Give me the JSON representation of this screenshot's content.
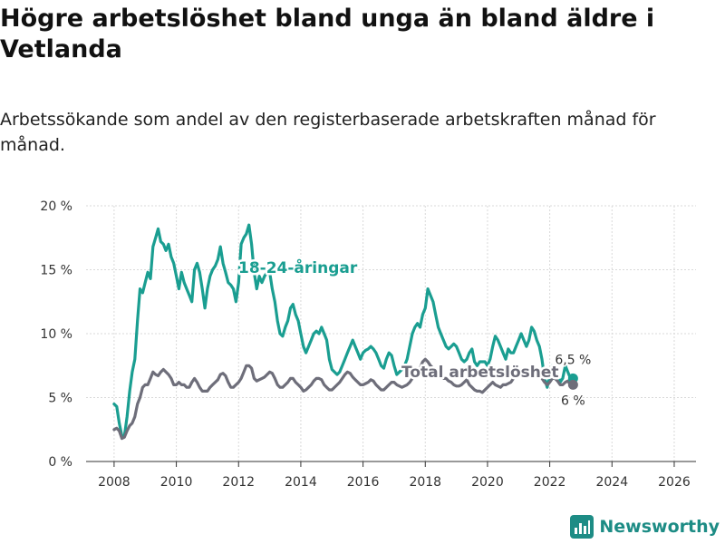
{
  "header": {
    "title": "Högre arbetslöshet bland unga än bland äldre i Vetlanda",
    "subtitle": "Arbetssökande som andel av den registerbaserade arbetskraften månad för månad."
  },
  "brand": {
    "name": "Newsworthy",
    "icon": "bar-chart-logo-icon",
    "color": "#1d8c85"
  },
  "chart_data": {
    "type": "line",
    "x_start": 2008.0,
    "x_step_months": 1,
    "xlim": [
      2007.1,
      2026.7
    ],
    "ylim": [
      0,
      20
    ],
    "xticks": [
      2008,
      2010,
      2012,
      2014,
      2016,
      2018,
      2020,
      2022,
      2024,
      2026
    ],
    "yticks": [
      0,
      5,
      10,
      15,
      20
    ],
    "ytick_labels": [
      "0 %",
      "5 %",
      "10 %",
      "15 %",
      "20 %"
    ],
    "grid": true,
    "series": [
      {
        "name": "18-24-åringar",
        "label": "18-24-åringar",
        "color": "#1a9e91",
        "end_label": "6,5 %",
        "values": [
          4.5,
          4.3,
          3.0,
          2.0,
          2.0,
          3.5,
          5.5,
          7.0,
          8.0,
          11.0,
          13.5,
          13.2,
          14.0,
          14.8,
          14.3,
          16.8,
          17.5,
          18.2,
          17.2,
          17.0,
          16.5,
          17.0,
          16.0,
          15.5,
          14.5,
          13.5,
          14.8,
          14.0,
          13.5,
          13.0,
          12.5,
          15.0,
          15.5,
          14.8,
          13.5,
          12.0,
          13.5,
          14.5,
          15.0,
          15.3,
          15.8,
          16.8,
          15.5,
          14.8,
          14.0,
          13.8,
          13.5,
          12.5,
          14.0,
          17.0,
          17.5,
          17.8,
          18.5,
          17.0,
          14.8,
          13.5,
          14.5,
          14.0,
          14.5,
          14.8,
          14.8,
          13.5,
          12.5,
          11.0,
          10.0,
          9.8,
          10.5,
          11.0,
          12.0,
          12.3,
          11.5,
          11.0,
          10.0,
          9.0,
          8.5,
          9.0,
          9.5,
          10.0,
          10.2,
          10.0,
          10.5,
          10.0,
          9.5,
          8.0,
          7.2,
          7.0,
          6.8,
          7.0,
          7.5,
          8.0,
          8.5,
          9.0,
          9.5,
          9.0,
          8.5,
          8.0,
          8.5,
          8.7,
          8.8,
          9.0,
          8.8,
          8.5,
          8.0,
          7.5,
          7.3,
          8.0,
          8.5,
          8.3,
          7.5,
          6.8,
          7.0,
          7.2,
          7.5,
          8.0,
          9.0,
          10.0,
          10.5,
          10.8,
          10.5,
          11.5,
          12.0,
          13.5,
          13.0,
          12.5,
          11.5,
          10.5,
          10.0,
          9.5,
          9.0,
          8.8,
          9.0,
          9.2,
          9.0,
          8.5,
          8.0,
          7.8,
          8.0,
          8.5,
          8.8,
          7.8,
          7.5,
          7.8,
          7.8,
          7.8,
          7.5,
          8.0,
          9.0,
          9.8,
          9.5,
          9.0,
          8.5,
          8.0,
          8.8,
          8.5,
          8.5,
          9.0,
          9.5,
          10.0,
          9.5,
          9.0,
          9.5,
          10.5,
          10.2,
          9.5,
          9.0,
          8.0,
          6.5,
          5.8,
          6.8,
          7.5,
          7.3,
          6.8,
          6.2,
          6.5,
          7.5,
          7.0,
          6.5,
          6.5
        ]
      },
      {
        "name": "Total arbetslöshet",
        "label": "Total arbetslöshet",
        "color": "#6e6e7a",
        "end_label": "6 %",
        "values": [
          2.5,
          2.6,
          2.4,
          1.8,
          1.9,
          2.4,
          2.8,
          3.0,
          3.5,
          4.5,
          5.0,
          5.8,
          6.0,
          6.0,
          6.5,
          7.0,
          6.8,
          6.7,
          7.0,
          7.2,
          7.0,
          6.8,
          6.5,
          6.0,
          6.0,
          6.2,
          6.0,
          6.0,
          5.8,
          5.8,
          6.2,
          6.5,
          6.2,
          5.8,
          5.5,
          5.5,
          5.5,
          5.8,
          6.0,
          6.2,
          6.4,
          6.8,
          6.9,
          6.7,
          6.2,
          5.8,
          5.8,
          6.0,
          6.2,
          6.5,
          7.0,
          7.5,
          7.5,
          7.3,
          6.5,
          6.3,
          6.4,
          6.5,
          6.6,
          6.8,
          7.0,
          6.9,
          6.5,
          6.0,
          5.8,
          5.8,
          6.0,
          6.2,
          6.5,
          6.5,
          6.2,
          6.0,
          5.8,
          5.5,
          5.6,
          5.8,
          6.0,
          6.3,
          6.5,
          6.5,
          6.4,
          6.0,
          5.8,
          5.6,
          5.6,
          5.8,
          6.0,
          6.2,
          6.5,
          6.8,
          7.0,
          6.9,
          6.6,
          6.4,
          6.2,
          6.0,
          6.0,
          6.1,
          6.2,
          6.4,
          6.3,
          6.0,
          5.8,
          5.6,
          5.6,
          5.8,
          6.0,
          6.2,
          6.2,
          6.0,
          5.9,
          5.8,
          5.9,
          6.0,
          6.2,
          6.5,
          6.8,
          7.0,
          7.3,
          7.8,
          8.0,
          7.8,
          7.5,
          7.3,
          7.0,
          6.8,
          6.8,
          6.5,
          6.5,
          6.3,
          6.2,
          6.0,
          5.9,
          5.9,
          6.0,
          6.2,
          6.4,
          6.0,
          5.8,
          5.6,
          5.5,
          5.5,
          5.4,
          5.6,
          5.8,
          6.0,
          6.2,
          6.0,
          5.9,
          5.8,
          6.0,
          6.0,
          6.1,
          6.2,
          6.5,
          6.8,
          7.0,
          7.2,
          6.8,
          6.8,
          7.0,
          7.0,
          7.2,
          7.0,
          6.8,
          6.5,
          6.2,
          6.0,
          6.2,
          6.5,
          6.5,
          6.3,
          6.0,
          6.0,
          6.2,
          6.3,
          6.0,
          6.0
        ]
      }
    ]
  }
}
